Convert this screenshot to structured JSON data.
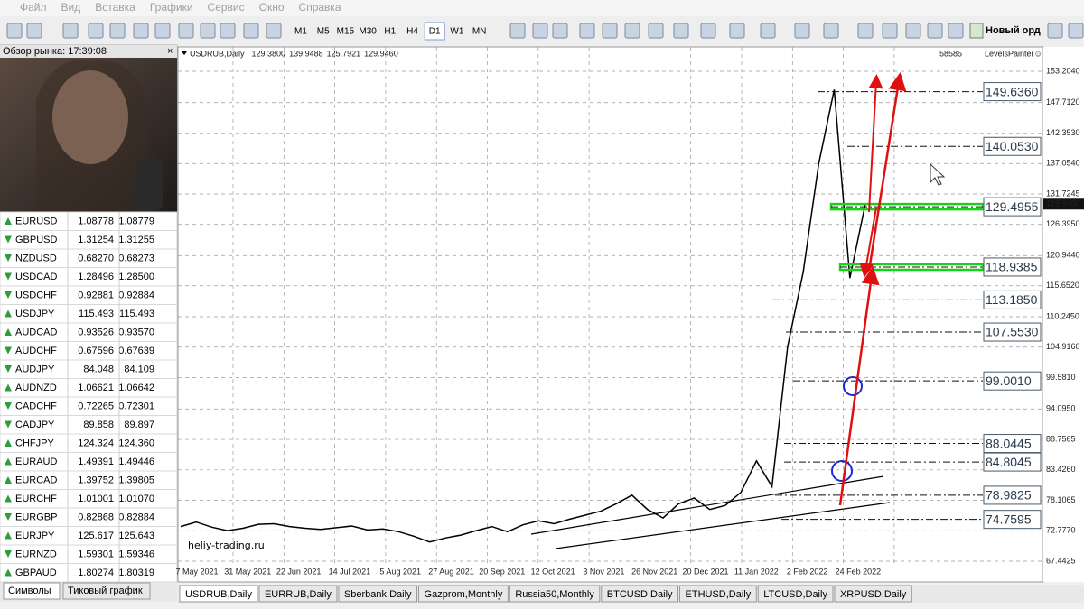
{
  "menu": [
    "Файл",
    "Вид",
    "Вставка",
    "Графики",
    "Сервис",
    "Окно",
    "Справка"
  ],
  "toolbar": {
    "timeframes": [
      "M1",
      "M5",
      "M15",
      "M30",
      "H1",
      "H4",
      "D1",
      "W1",
      "MN"
    ],
    "new_order": "Новый орд"
  },
  "market_watch": {
    "title": "Обзор рынка: 17:39:08",
    "rows": [
      {
        "symbol": "EURUSD",
        "bid": "1.08778",
        "ask": "1.08779",
        "up": true
      },
      {
        "symbol": "GBPUSD",
        "bid": "1.31254",
        "ask": "1.31255",
        "up": false
      },
      {
        "symbol": "NZDUSD",
        "bid": "0.68270",
        "ask": "0.68273",
        "up": false
      },
      {
        "symbol": "USDCAD",
        "bid": "1.28496",
        "ask": "1.28500",
        "up": false
      },
      {
        "symbol": "USDCHF",
        "bid": "0.92881",
        "ask": "0.92884",
        "up": false
      },
      {
        "symbol": "USDJPY",
        "bid": "115.493",
        "ask": "115.493",
        "up": true
      },
      {
        "symbol": "AUDCAD",
        "bid": "0.93526",
        "ask": "0.93570",
        "up": true
      },
      {
        "symbol": "AUDCHF",
        "bid": "0.67596",
        "ask": "0.67639",
        "up": false
      },
      {
        "symbol": "AUDJPY",
        "bid": "84.048",
        "ask": "84.109",
        "up": false
      },
      {
        "symbol": "AUDNZD",
        "bid": "1.06621",
        "ask": "1.06642",
        "up": true
      },
      {
        "symbol": "CADCHF",
        "bid": "0.72265",
        "ask": "0.72301",
        "up": false
      },
      {
        "symbol": "CADJPY",
        "bid": "89.858",
        "ask": "89.897",
        "up": false
      },
      {
        "symbol": "CHFJPY",
        "bid": "124.324",
        "ask": "124.360",
        "up": true
      },
      {
        "symbol": "EURAUD",
        "bid": "1.49391",
        "ask": "1.49446",
        "up": true
      },
      {
        "symbol": "EURCAD",
        "bid": "1.39752",
        "ask": "1.39805",
        "up": true
      },
      {
        "symbol": "EURCHF",
        "bid": "1.01001",
        "ask": "1.01070",
        "up": true
      },
      {
        "symbol": "EURGBP",
        "bid": "0.82868",
        "ask": "0.82884",
        "up": false
      },
      {
        "symbol": "EURJPY",
        "bid": "125.617",
        "ask": "125.643",
        "up": true
      },
      {
        "symbol": "EURNZD",
        "bid": "1.59301",
        "ask": "1.59346",
        "up": false
      },
      {
        "symbol": "GBPAUD",
        "bid": "1.80274",
        "ask": "1.80319",
        "up": true
      }
    ],
    "tabs": [
      "Символы",
      "Тиковый график"
    ]
  },
  "chart": {
    "header": "USDRUB,Daily",
    "ohlc": [
      "129.3800",
      "139.9488",
      "125.7921",
      "129.9460"
    ],
    "counter": "58585",
    "indicator": "LevelsPainter☺",
    "price_axis": [
      "153.2040",
      "147.7120",
      "142.3530",
      "137.0540",
      "131.7245",
      "126.3950",
      "120.9440",
      "115.6520",
      "110.2450",
      "104.9160",
      "99.5810",
      "94.0950",
      "88.7565",
      "83.4260",
      "78.1065",
      "72.7770",
      "67.4425"
    ],
    "current_price": "129.9460",
    "levels": [
      "149.6360",
      "140.0530",
      "129.4955",
      "118.9385",
      "113.1850",
      "107.5530",
      "99.0010",
      "88.0445",
      "84.8045",
      "78.9825",
      "74.7595"
    ],
    "dates": [
      "7 May 2021",
      "31 May 2021",
      "22 Jun 2021",
      "14 Jul 2021",
      "5 Aug 2021",
      "27 Aug 2021",
      "20 Sep 2021",
      "12 Oct 2021",
      "3 Nov 2021",
      "26 Nov 2021",
      "20 Dec 2021",
      "11 Jan 2022",
      "2 Feb 2022",
      "24 Feb 2022"
    ],
    "watermark": "heliy-trading.ru",
    "close_estimates": [
      73.5,
      74.3,
      73.4,
      72.8,
      73.2,
      73.9,
      74.0,
      73.5,
      73.2,
      73.0,
      73.3,
      73.6,
      72.9,
      73.1,
      72.6,
      71.8,
      70.8,
      71.5,
      72.0,
      72.8,
      73.5,
      72.6,
      73.8,
      74.5,
      74.0,
      74.8,
      75.5,
      76.2,
      77.5,
      79.0,
      76.5,
      75.0,
      77.5,
      78.5,
      76.5,
      77.2,
      79.5,
      85.0,
      80.5,
      105.0,
      118.0,
      137.0,
      150.0,
      117.0,
      130.0
    ]
  },
  "tabs": [
    "USDRUB,Daily",
    "EURRUB,Daily",
    "Sberbank,Daily",
    "Gazprom,Monthly",
    "Russia50,Monthly",
    "BTCUSD,Daily",
    "ETHUSD,Daily",
    "LTCUSD,Daily",
    "XRPUSD,Daily"
  ]
}
